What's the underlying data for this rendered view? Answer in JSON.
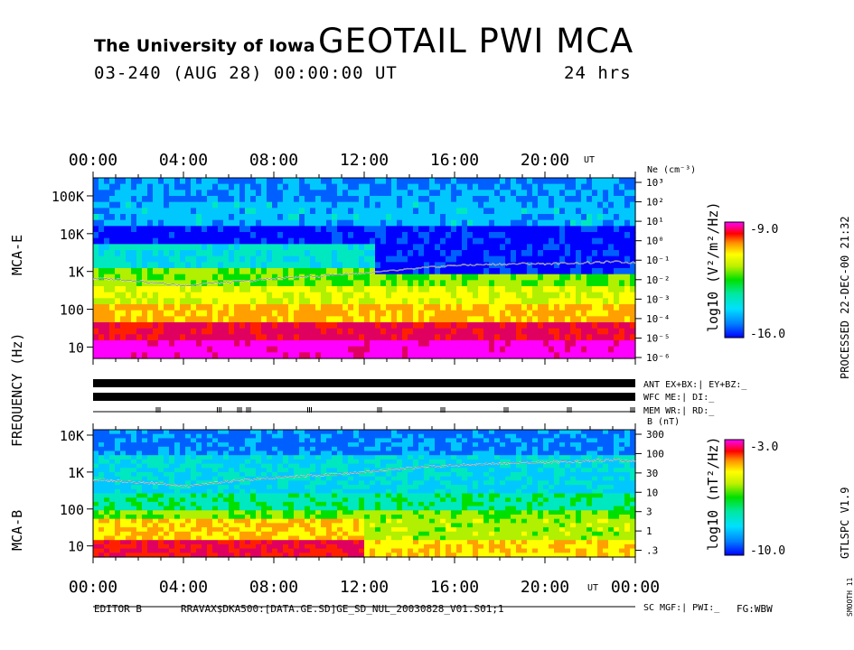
{
  "header": {
    "institution": "The University of Iowa",
    "title": "GEOTAIL PWI MCA",
    "date_line": "03-240 (AUG 28) 00:00:00 UT",
    "duration": "24 hrs"
  },
  "side": {
    "processed": "PROCESSED 22-DEC-00 21:32",
    "version": "GTLSPC V1.9",
    "smooth": "SMOOTH 11"
  },
  "footer": {
    "editor": "EDITOR B",
    "file": "RRAVAX$DKA500:[DATA.GE.SD]GE_SD_NUL_20030828_V01.S01;1",
    "fg": "FG:WBW"
  },
  "labels": {
    "mca_e": "MCA-E",
    "frequency": "FREQUENCY (Hz)",
    "mca_b": "MCA-B",
    "ut": "UT"
  },
  "status": {
    "ant": "ANT EX+BX:|  EY+BZ:_",
    "wfc": "WFC ME:|     DI:_",
    "mem": "MEM WR:|     RD:_",
    "sc": "SC MGF:|    PWI:_"
  },
  "colors": {
    "scale": [
      "#0000ff",
      "#0060ff",
      "#00c8ff",
      "#00e8c0",
      "#00e000",
      "#b0f000",
      "#ffff00",
      "#ffa000",
      "#ff2000",
      "#e00060",
      "#ff00ff"
    ]
  },
  "chart_data": [
    {
      "type": "heatmap",
      "title": "MCA-E",
      "xlabel": "UT",
      "ylabel": "Frequency (Hz)",
      "x_ticks": [
        "00:00",
        "04:00",
        "08:00",
        "12:00",
        "16:00",
        "20:00"
      ],
      "x_range_hours": [
        0,
        24
      ],
      "y_ticks": [
        "100K",
        "10K",
        "1K",
        "100",
        "10"
      ],
      "y_range_hz": [
        5,
        300000
      ],
      "right_axis_label": "Ne (cm⁻³)",
      "right_ticks": [
        "10³",
        "10²",
        "10¹",
        "10⁰",
        "10⁻¹",
        "10⁻²",
        "10⁻³",
        "10⁻⁴",
        "10⁻⁵",
        "10⁻⁶"
      ],
      "colorbar": {
        "label": "log10 (V²/m²/Hz)",
        "min_label": "-16.0",
        "max_label": "-9.0",
        "min": -16.0,
        "max": -9.0
      },
      "overlay_line_hours": [
        0,
        1,
        2,
        3,
        4,
        5,
        6,
        7,
        8,
        9,
        10,
        11,
        12,
        13,
        14,
        15,
        16,
        17,
        18,
        19,
        20,
        21,
        22,
        23,
        24
      ],
      "overlay_line_hz": [
        650,
        620,
        560,
        480,
        420,
        480,
        520,
        560,
        650,
        700,
        750,
        850,
        900,
        1000,
        1150,
        1300,
        1450,
        1500,
        1550,
        1600,
        1600,
        1650,
        1700,
        1800,
        1700
      ]
    },
    {
      "type": "heatmap",
      "title": "MCA-B",
      "xlabel": "UT",
      "ylabel": "Frequency (Hz)",
      "x_ticks": [
        "00:00",
        "04:00",
        "08:00",
        "12:00",
        "16:00",
        "20:00",
        "00:00"
      ],
      "x_range_hours": [
        0,
        24
      ],
      "y_ticks": [
        "10K",
        "1K",
        "100",
        "10"
      ],
      "y_range_hz": [
        5,
        14000
      ],
      "right_axis_label": "B (nT)",
      "right_ticks": [
        "300",
        "100",
        "30",
        "10",
        "3",
        "1",
        ".3"
      ],
      "colorbar": {
        "label": "log10 (nT²/Hz)",
        "min_label": "-10.0",
        "max_label": "-3.0",
        "min": -10.0,
        "max": -3.0
      },
      "overlay_line_hours": [
        0,
        1,
        2,
        3,
        4,
        5,
        6,
        7,
        8,
        9,
        10,
        11,
        12,
        13,
        14,
        15,
        16,
        17,
        18,
        19,
        20,
        21,
        22,
        23,
        24
      ],
      "overlay_line_hz": [
        600,
        580,
        540,
        480,
        420,
        480,
        550,
        620,
        700,
        760,
        820,
        900,
        1000,
        1100,
        1250,
        1400,
        1500,
        1600,
        1700,
        1800,
        1850,
        1900,
        2000,
        2100,
        2000
      ]
    }
  ]
}
